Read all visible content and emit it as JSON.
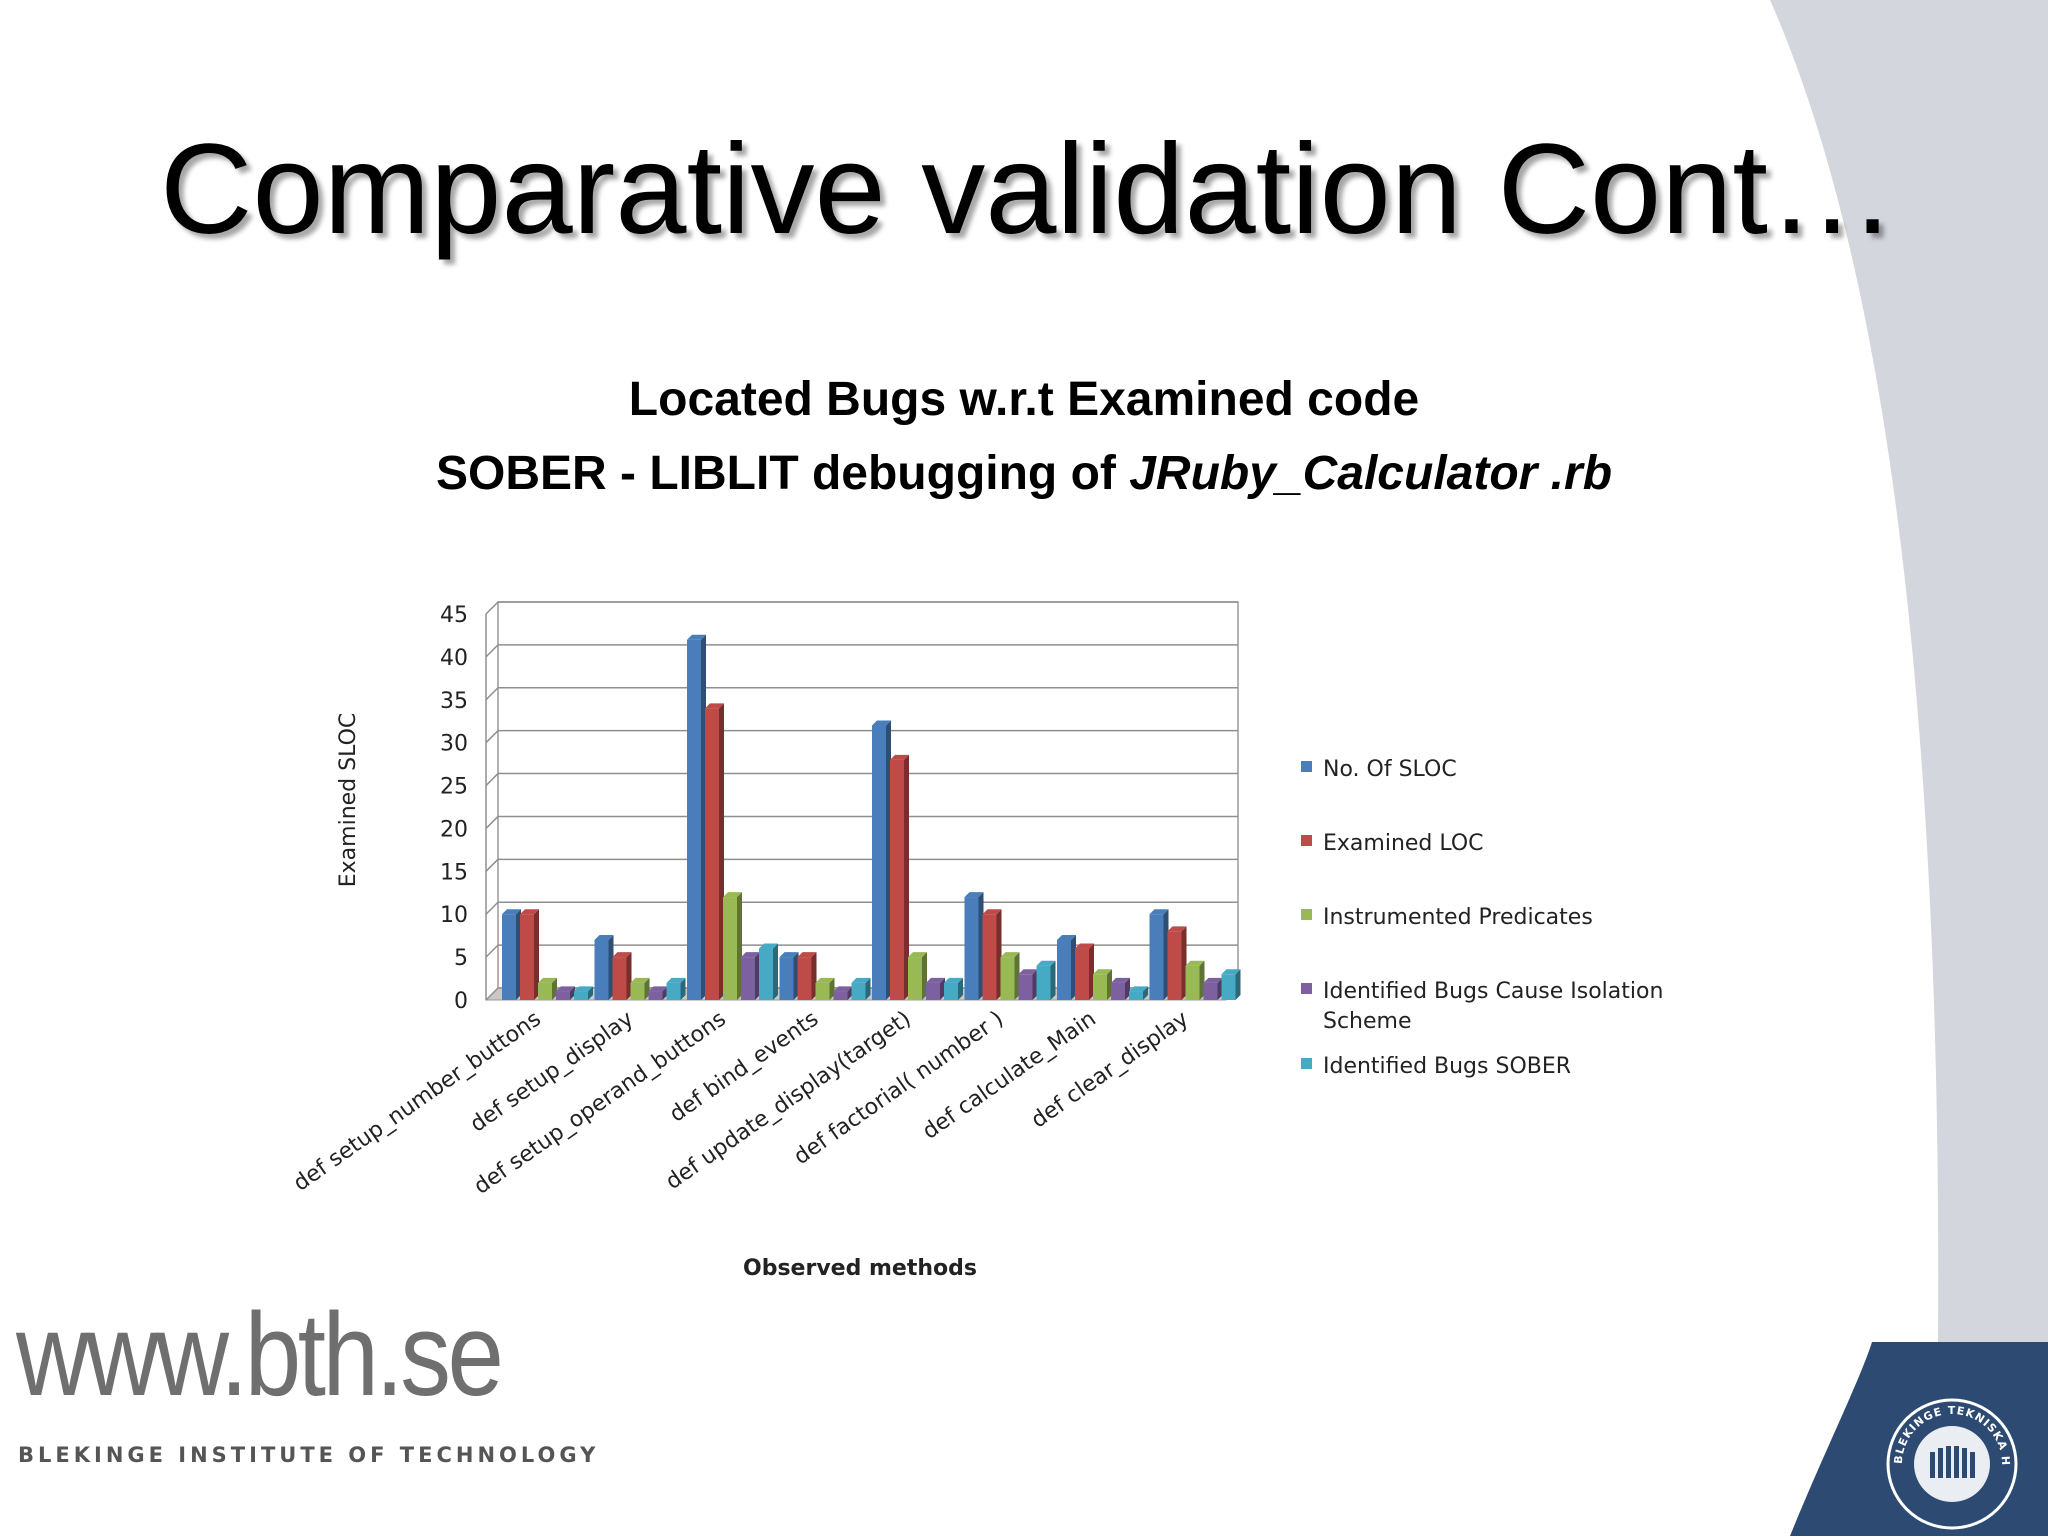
{
  "slide": {
    "title": "Comparative validation Cont…",
    "subtitle_line1": "Located Bugs w.r.t Examined code",
    "subtitle_line2_prefix": "SOBER - LIBLIT debugging of ",
    "subtitle_line2_italic": "JRuby_Calculator .rb"
  },
  "footer": {
    "url": "www.bth.se",
    "institute": "BLEKINGE INSTITUTE OF TECHNOLOGY",
    "seal_text": "BLEKINGE TEKNISKA HÖGSKOLA · BTH"
  },
  "colors": {
    "accent_dark_blue": "#2c4a72",
    "swoosh_gray": "#d3d6dc"
  },
  "chart_data": {
    "type": "bar",
    "xlabel": "Observed methods",
    "ylabel": "Examined SLOC",
    "ylim": [
      0,
      45
    ],
    "yticks": [
      0,
      5,
      10,
      15,
      20,
      25,
      30,
      35,
      40,
      45
    ],
    "grid": true,
    "legend_position": "right",
    "categories": [
      "def setup_number_buttons",
      "def setup_display",
      "def setup_operand_buttons",
      "def bind_events",
      "def update_display(target)",
      "def factorial( number )",
      "def calculate_Main",
      "def clear_display"
    ],
    "series": [
      {
        "name": "No. Of SLOC",
        "color": "#4a7ebb",
        "values": [
          10,
          7,
          42,
          5,
          32,
          12,
          7,
          10
        ]
      },
      {
        "name": "Examined LOC",
        "color": "#be4b48",
        "values": [
          10,
          5,
          34,
          5,
          28,
          10,
          6,
          8
        ]
      },
      {
        "name": "Instrumented Predicates",
        "color": "#98b954",
        "values": [
          2,
          2,
          12,
          2,
          5,
          5,
          3,
          4
        ]
      },
      {
        "name": "Identified Bugs Cause Isolation Scheme",
        "color": "#7d60a0",
        "values": [
          1,
          1,
          5,
          1,
          2,
          3,
          2,
          2
        ]
      },
      {
        "name": "Identified Bugs SOBER",
        "color": "#46aac5",
        "values": [
          1,
          2,
          6,
          2,
          2,
          4,
          1,
          3
        ]
      }
    ]
  }
}
